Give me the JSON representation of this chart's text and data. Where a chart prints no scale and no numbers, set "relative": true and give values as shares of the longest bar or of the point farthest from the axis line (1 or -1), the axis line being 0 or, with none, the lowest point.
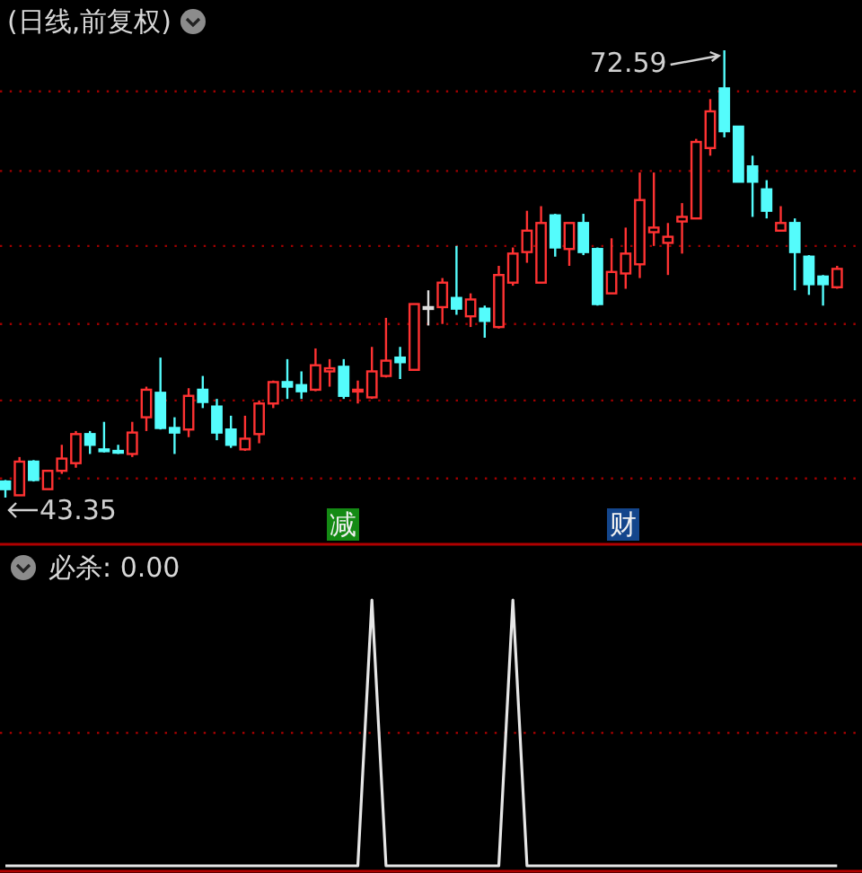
{
  "chart_data": [
    {
      "type": "candlestick",
      "title": "(日线,前复权)",
      "categories": [
        null,
        null,
        null,
        null,
        null,
        null,
        null,
        null,
        null,
        null,
        null,
        null,
        null,
        null,
        null,
        null,
        null,
        null,
        null,
        null,
        null,
        null,
        null,
        null,
        null,
        null,
        null,
        null,
        null,
        null,
        null,
        null,
        null,
        null,
        null,
        null,
        null,
        null,
        null,
        null,
        null,
        null,
        null,
        null,
        null,
        null,
        null,
        null,
        null,
        null,
        null,
        null,
        null,
        null,
        null,
        null,
        null,
        null,
        null,
        null
      ],
      "ohlc": [
        [
          44.4,
          44.5,
          43.35,
          43.9
        ],
        [
          43.5,
          46.0,
          43.5,
          45.7
        ],
        [
          45.7,
          45.8,
          44.4,
          44.5
        ],
        [
          43.9,
          45.1,
          43.9,
          45.1
        ],
        [
          45.1,
          46.8,
          44.9,
          45.9
        ],
        [
          45.6,
          47.7,
          45.3,
          47.5
        ],
        [
          47.5,
          47.7,
          46.2,
          46.8
        ],
        [
          46.5,
          48.3,
          46.3,
          46.4
        ],
        [
          46.4,
          46.8,
          46.2,
          46.3
        ],
        [
          46.2,
          48.3,
          46.0,
          47.6
        ],
        [
          48.6,
          50.6,
          47.7,
          50.4
        ],
        [
          50.2,
          52.5,
          47.8,
          47.9
        ],
        [
          47.9,
          48.6,
          46.2,
          47.6
        ],
        [
          47.8,
          50.5,
          47.3,
          50.0
        ],
        [
          50.4,
          51.3,
          49.2,
          49.6
        ],
        [
          49.3,
          49.8,
          47.1,
          47.6
        ],
        [
          47.8,
          48.7,
          46.6,
          46.8
        ],
        [
          46.5,
          48.7,
          46.4,
          47.2
        ],
        [
          47.5,
          49.7,
          46.9,
          49.5
        ],
        [
          49.5,
          51.0,
          49.2,
          50.9
        ],
        [
          50.9,
          52.4,
          49.8,
          50.6
        ],
        [
          50.7,
          51.6,
          49.8,
          50.3
        ],
        [
          50.4,
          53.1,
          50.3,
          52.0
        ],
        [
          51.6,
          52.4,
          50.6,
          51.8
        ],
        [
          51.9,
          52.4,
          49.8,
          50.0
        ],
        [
          50.3,
          51.0,
          49.5,
          50.4
        ],
        [
          49.9,
          53.2,
          49.8,
          51.6
        ],
        [
          51.3,
          55.1,
          51.2,
          52.3
        ],
        [
          52.5,
          53.2,
          51.1,
          52.2
        ],
        [
          51.7,
          56.0,
          51.7,
          56.0
        ],
        [
          55.8,
          56.9,
          54.6,
          55.8
        ],
        [
          55.8,
          57.7,
          54.7,
          57.4
        ],
        [
          56.4,
          59.8,
          55.3,
          55.7
        ],
        [
          55.2,
          56.7,
          54.5,
          56.3
        ],
        [
          55.7,
          55.9,
          53.8,
          54.9
        ],
        [
          54.5,
          58.5,
          54.4,
          57.9
        ],
        [
          57.4,
          59.7,
          57.2,
          59.3
        ],
        [
          59.4,
          62.1,
          58.7,
          60.8
        ],
        [
          57.4,
          62.4,
          57.4,
          61.3
        ],
        [
          61.8,
          61.9,
          59.1,
          59.7
        ],
        [
          59.6,
          61.3,
          58.5,
          61.3
        ],
        [
          61.3,
          61.9,
          59.2,
          59.4
        ],
        [
          59.6,
          59.7,
          55.9,
          56.0
        ],
        [
          56.7,
          60.3,
          56.7,
          58.1
        ],
        [
          58.0,
          61.0,
          57.0,
          59.3
        ],
        [
          58.6,
          64.6,
          57.7,
          62.8
        ],
        [
          60.7,
          64.6,
          59.8,
          61.0
        ],
        [
          60.0,
          61.3,
          57.9,
          60.4
        ],
        [
          61.4,
          62.6,
          59.3,
          61.7
        ],
        [
          61.6,
          66.8,
          61.6,
          66.6
        ],
        [
          66.2,
          69.4,
          65.7,
          68.6
        ],
        [
          70.1,
          72.59,
          66.9,
          67.3
        ],
        [
          67.6,
          67.6,
          64.0,
          64.0
        ],
        [
          65.0,
          65.7,
          61.7,
          64.0
        ],
        [
          63.5,
          64.1,
          61.6,
          62.1
        ],
        [
          60.8,
          62.4,
          60.8,
          61.3
        ],
        [
          61.3,
          61.6,
          56.9,
          59.4
        ],
        [
          59.1,
          59.2,
          56.6,
          57.3
        ],
        [
          57.8,
          57.9,
          55.9,
          57.3
        ],
        [
          57.1,
          58.5,
          57.0,
          58.3
        ]
      ],
      "colors": [
        "#54fcfc",
        "#ff3232",
        "#54fcfc",
        "#ff3232",
        "#ff3232",
        "#ff3232",
        "#54fcfc",
        "#54fcfc",
        "#54fcfc",
        "#ff3232",
        "#ff3232",
        "#54fcfc",
        "#54fcfc",
        "#ff3232",
        "#54fcfc",
        "#54fcfc",
        "#54fcfc",
        "#ff3232",
        "#ff3232",
        "#ff3232",
        "#54fcfc",
        "#54fcfc",
        "#ff3232",
        "#ff3232",
        "#54fcfc",
        "#ff3232",
        "#ff3232",
        "#ff3232",
        "#54fcfc",
        "#ff3232",
        "#dddddd",
        "#ff3232",
        "#54fcfc",
        "#ff3232",
        "#54fcfc",
        "#ff3232",
        "#ff3232",
        "#ff3232",
        "#ff3232",
        "#54fcfc",
        "#ff3232",
        "#54fcfc",
        "#54fcfc",
        "#ff3232",
        "#ff3232",
        "#ff3232",
        "#ff3232",
        "#ff3232",
        "#ff3232",
        "#ff3232",
        "#ff3232",
        "#54fcfc",
        "#54fcfc",
        "#54fcfc",
        "#54fcfc",
        "#ff3232",
        "#54fcfc",
        "#54fcfc",
        "#54fcfc",
        "#ff3232"
      ],
      "grid": true,
      "yticks": [
        {
          "value": 44.6,
          "label": null
        },
        {
          "value": 49.7,
          "label": null
        },
        {
          "value": 54.7,
          "label": null
        },
        {
          "value": 59.8,
          "label": null
        },
        {
          "value": 64.7,
          "label": null
        },
        {
          "value": 69.9,
          "label": null
        }
      ],
      "annotations": [
        "72.59",
        "43.35",
        "减",
        "财"
      ]
    },
    {
      "type": "line",
      "title": "必杀: 0.00",
      "relative": true,
      "color": "#e6e6e6",
      "ref_lines": [
        {
          "axis": "y",
          "value": 0.5,
          "color": "#a00000",
          "line_style": "dotted"
        }
      ],
      "categories": [
        null,
        null,
        null,
        null,
        null,
        null,
        null,
        null,
        null,
        null,
        null,
        null,
        null,
        null,
        null,
        null,
        null,
        null,
        null,
        null,
        null,
        null,
        null,
        null,
        null,
        null,
        null,
        null,
        null,
        null,
        null,
        null,
        null,
        null,
        null,
        null,
        null,
        null,
        null,
        null,
        null,
        null,
        null,
        null,
        null,
        null,
        null,
        null,
        null,
        null,
        null,
        null,
        null,
        null,
        null,
        null,
        null,
        null,
        null,
        null
      ],
      "values": [
        0,
        0,
        0,
        0,
        0,
        0,
        0,
        0,
        0,
        0,
        0,
        0,
        0,
        0,
        0,
        0,
        0,
        0,
        0,
        0,
        0,
        0,
        0,
        0,
        0,
        0,
        1,
        0,
        0,
        0,
        0,
        0,
        0,
        0,
        0,
        0,
        1,
        0,
        0,
        0,
        0,
        0,
        0,
        0,
        0,
        0,
        0,
        0,
        0,
        0,
        0,
        0,
        0,
        0,
        0,
        0,
        0,
        0,
        0,
        0
      ]
    }
  ]
}
